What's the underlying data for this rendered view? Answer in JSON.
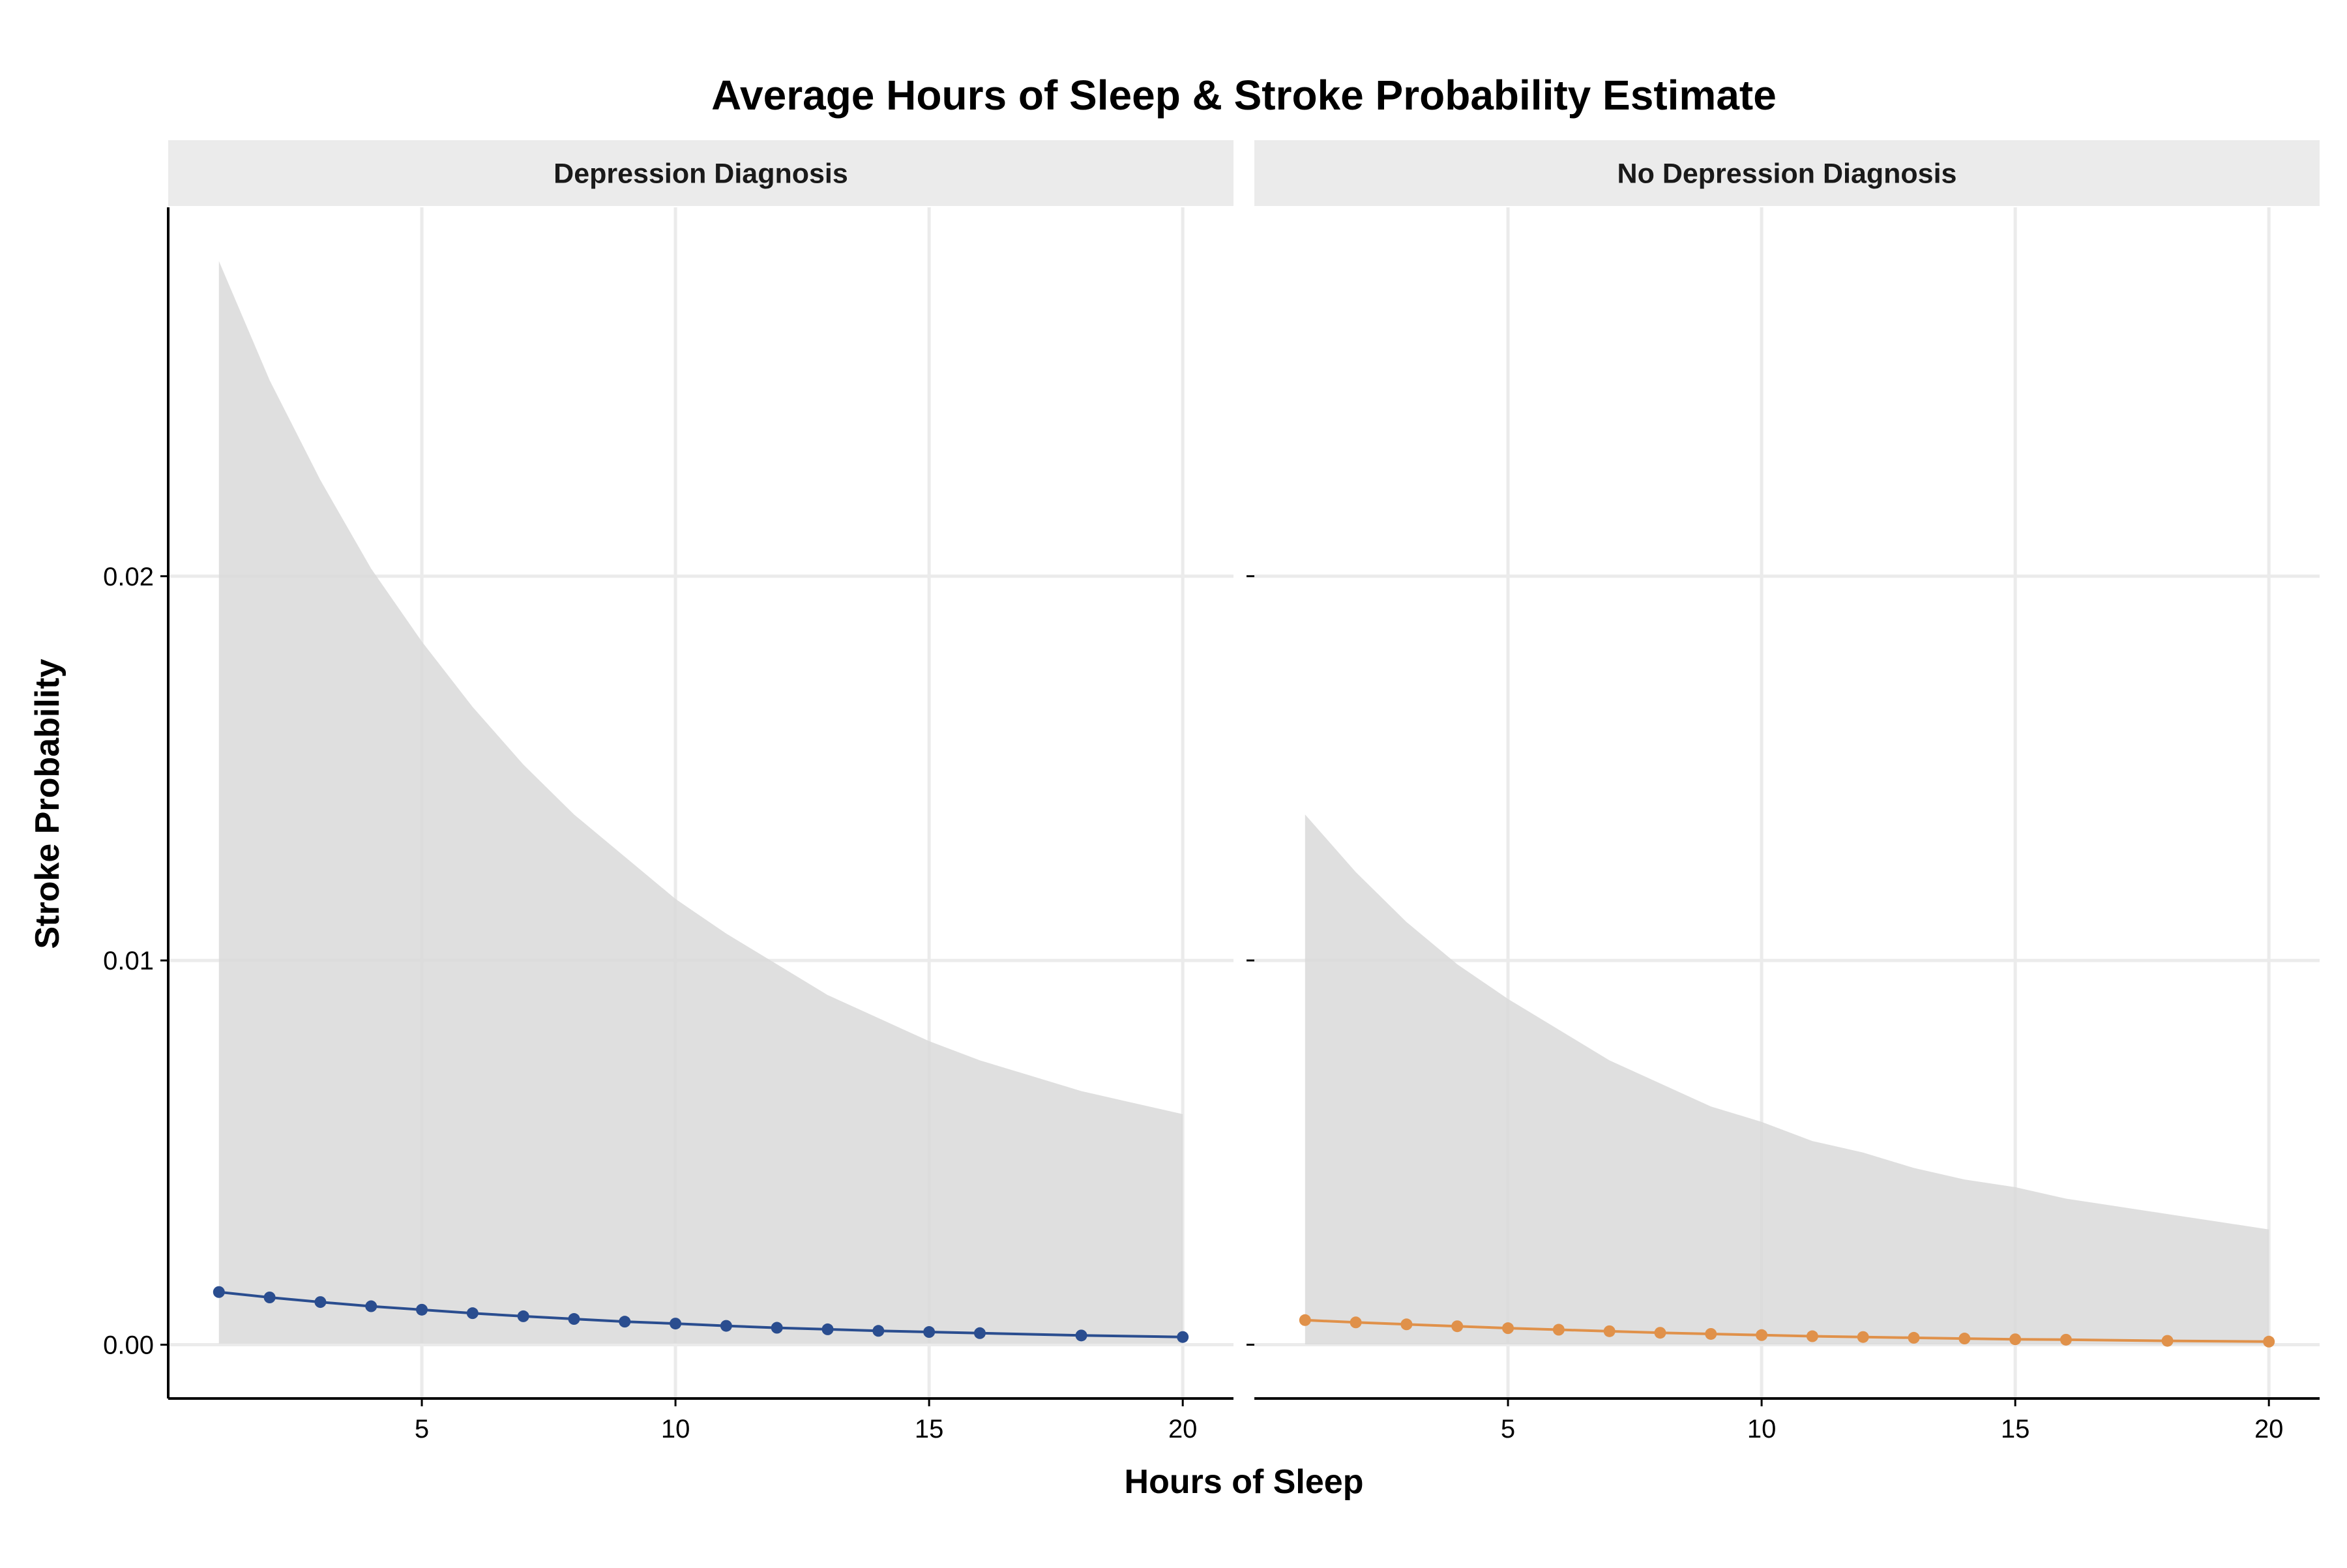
{
  "chart_data": {
    "type": "line",
    "title": "Average Hours of Sleep & Stroke Probability Estimate",
    "xlabel": "Hours of Sleep",
    "ylabel": "Stroke Probability",
    "xlim": [
      0,
      21
    ],
    "ylim": [
      -0.0014,
      0.0296
    ],
    "x_ticks": [
      5,
      10,
      15,
      20
    ],
    "y_ticks": [
      0.0,
      0.01,
      0.02
    ],
    "y_tick_labels": [
      "0.00",
      "0.01",
      "0.02"
    ],
    "grid": true,
    "legend": "none",
    "panels": [
      {
        "label": "Depression Diagnosis",
        "color": "#2a4d8f",
        "points": [
          {
            "x": 1,
            "y": 0.00137
          },
          {
            "x": 2,
            "y": 0.00123
          },
          {
            "x": 3,
            "y": 0.00111
          },
          {
            "x": 4,
            "y": 0.001
          },
          {
            "x": 5,
            "y": 0.00091
          },
          {
            "x": 6,
            "y": 0.00082
          },
          {
            "x": 7,
            "y": 0.00074
          },
          {
            "x": 8,
            "y": 0.00067
          },
          {
            "x": 9,
            "y": 0.0006
          },
          {
            "x": 10,
            "y": 0.00055
          },
          {
            "x": 11,
            "y": 0.00049
          },
          {
            "x": 12,
            "y": 0.00044
          },
          {
            "x": 13,
            "y": 0.0004
          },
          {
            "x": 14,
            "y": 0.00036
          },
          {
            "x": 15,
            "y": 0.00033
          },
          {
            "x": 16,
            "y": 0.0003
          },
          {
            "x": 18,
            "y": 0.00024
          },
          {
            "x": 20,
            "y": 0.0002
          }
        ],
        "ribbon": {
          "x": [
            1,
            2,
            3,
            4,
            5,
            6,
            7,
            8,
            9,
            10,
            11,
            12,
            13,
            14,
            15,
            16,
            17,
            18,
            19,
            20
          ],
          "upper": [
            0.0282,
            0.0251,
            0.0225,
            0.0202,
            0.0183,
            0.0166,
            0.0151,
            0.0138,
            0.0127,
            0.0116,
            0.0107,
            0.0099,
            0.0091,
            0.0085,
            0.0079,
            0.0074,
            0.007,
            0.0066,
            0.0063,
            0.006
          ],
          "lower": [
            3e-05,
            3e-05,
            3e-05,
            3e-05,
            3e-05,
            3e-05,
            3e-05,
            3e-05,
            3e-05,
            3e-05,
            3e-05,
            3e-05,
            3e-05,
            3e-05,
            3e-05,
            3e-05,
            3e-05,
            3e-05,
            3e-05,
            3e-05
          ]
        }
      },
      {
        "label": "No Depression Diagnosis",
        "color": "#e0914a",
        "points": [
          {
            "x": 1,
            "y": 0.00064
          },
          {
            "x": 2,
            "y": 0.00058
          },
          {
            "x": 3,
            "y": 0.00053
          },
          {
            "x": 4,
            "y": 0.00048
          },
          {
            "x": 5,
            "y": 0.00043
          },
          {
            "x": 6,
            "y": 0.00039
          },
          {
            "x": 7,
            "y": 0.00035
          },
          {
            "x": 8,
            "y": 0.00031
          },
          {
            "x": 9,
            "y": 0.00028
          },
          {
            "x": 10,
            "y": 0.00025
          },
          {
            "x": 11,
            "y": 0.00022
          },
          {
            "x": 12,
            "y": 0.0002
          },
          {
            "x": 13,
            "y": 0.00018
          },
          {
            "x": 14,
            "y": 0.00016
          },
          {
            "x": 15,
            "y": 0.00014
          },
          {
            "x": 16,
            "y": 0.00013
          },
          {
            "x": 18,
            "y": 0.0001
          },
          {
            "x": 20,
            "y": 8e-05
          }
        ],
        "ribbon": {
          "x": [
            1,
            2,
            3,
            4,
            5,
            6,
            7,
            8,
            9,
            10,
            11,
            12,
            13,
            14,
            15,
            16,
            17,
            18,
            19,
            20
          ],
          "upper": [
            0.0138,
            0.0123,
            0.011,
            0.0099,
            0.009,
            0.0082,
            0.0074,
            0.0068,
            0.0062,
            0.0058,
            0.0053,
            0.005,
            0.0046,
            0.0043,
            0.0041,
            0.0038,
            0.0036,
            0.0034,
            0.0032,
            0.003
          ],
          "lower": [
            1e-05,
            1e-05,
            1e-05,
            1e-05,
            1e-05,
            1e-05,
            1e-05,
            1e-05,
            1e-05,
            1e-05,
            1e-05,
            1e-05,
            1e-05,
            1e-05,
            1e-05,
            1e-05,
            1e-05,
            1e-05,
            1e-05,
            1e-05
          ]
        }
      }
    ]
  },
  "colors": {
    "ribbon": "#d9d9d9",
    "grid": "#ebebeb",
    "strip_background": "#ebebeb",
    "axis": "#000000"
  }
}
